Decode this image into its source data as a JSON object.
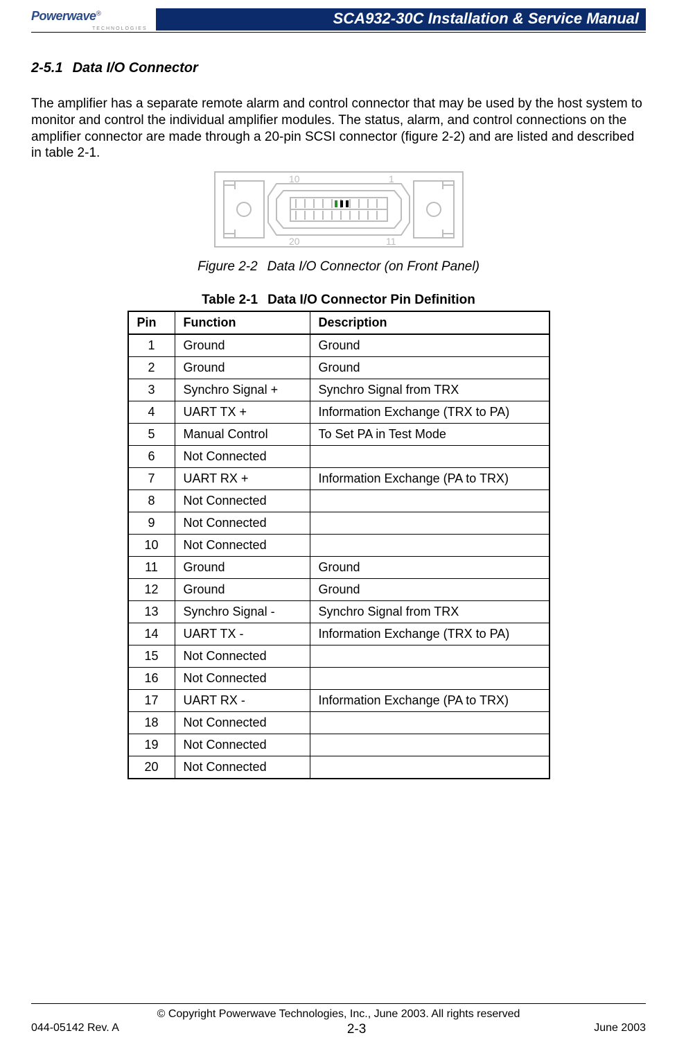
{
  "header": {
    "logo_name": "Powerwave",
    "logo_sub": "TECHNOLOGIES",
    "manual_title": "SCA932-30C Installation & Service Manual"
  },
  "section": {
    "number": "2-5.1",
    "title": "Data I/O Connector",
    "paragraph": "The amplifier has a separate remote alarm and control connector that may be used by the host system to monitor and control the individual amplifier modules. The status, alarm, and control connections on the amplifier connector are made through a 20-pin SCSI connector (figure 2-2) and are listed and described in table 2-1."
  },
  "figure": {
    "label": "Figure 2-2",
    "caption": "Data I/O Connector (on Front Panel)",
    "pin_labels": {
      "tl": "10",
      "tr": "1",
      "bl": "20",
      "br": "11"
    }
  },
  "table": {
    "label": "Table 2-1",
    "caption": "Data I/O Connector Pin Definition",
    "columns": [
      "Pin",
      "Function",
      "Description"
    ],
    "rows": [
      [
        "1",
        "Ground",
        "Ground"
      ],
      [
        "2",
        "Ground",
        "Ground"
      ],
      [
        "3",
        "Synchro Signal +",
        "Synchro Signal from TRX"
      ],
      [
        "4",
        "UART TX +",
        "Information Exchange (TRX to PA)"
      ],
      [
        "5",
        "Manual Control",
        "To Set PA in Test Mode"
      ],
      [
        "6",
        "Not Connected",
        ""
      ],
      [
        "7",
        "UART RX +",
        "Information Exchange (PA to TRX)"
      ],
      [
        "8",
        "Not Connected",
        ""
      ],
      [
        "9",
        "Not Connected",
        ""
      ],
      [
        "10",
        "Not Connected",
        ""
      ],
      [
        "11",
        "Ground",
        "Ground"
      ],
      [
        "12",
        "Ground",
        "Ground"
      ],
      [
        "13",
        "Synchro Signal -",
        "Synchro Signal from TRX"
      ],
      [
        "14",
        "UART TX -",
        "Information Exchange (TRX to PA)"
      ],
      [
        "15",
        "Not Connected",
        ""
      ],
      [
        "16",
        "Not Connected",
        ""
      ],
      [
        "17",
        "UART RX -",
        "Information Exchange (PA to TRX)"
      ],
      [
        "18",
        "Not Connected",
        ""
      ],
      [
        "19",
        "Not Connected",
        ""
      ],
      [
        "20",
        "Not Connected",
        ""
      ]
    ]
  },
  "footer": {
    "copyright": "© Copyright Powerwave Technologies, Inc., June 2003. All rights reserved",
    "doc_rev": "044-05142 Rev. A",
    "page_num": "2-3",
    "date": "June 2003"
  },
  "colors": {
    "title_bar_bg": "#0b2b6b",
    "title_bar_text": "#ffffff",
    "logo_blue": "#2a4a88",
    "rule": "#000000",
    "connector_outline": "#bdbdbd",
    "connector_labels": "#bdbdbd"
  }
}
